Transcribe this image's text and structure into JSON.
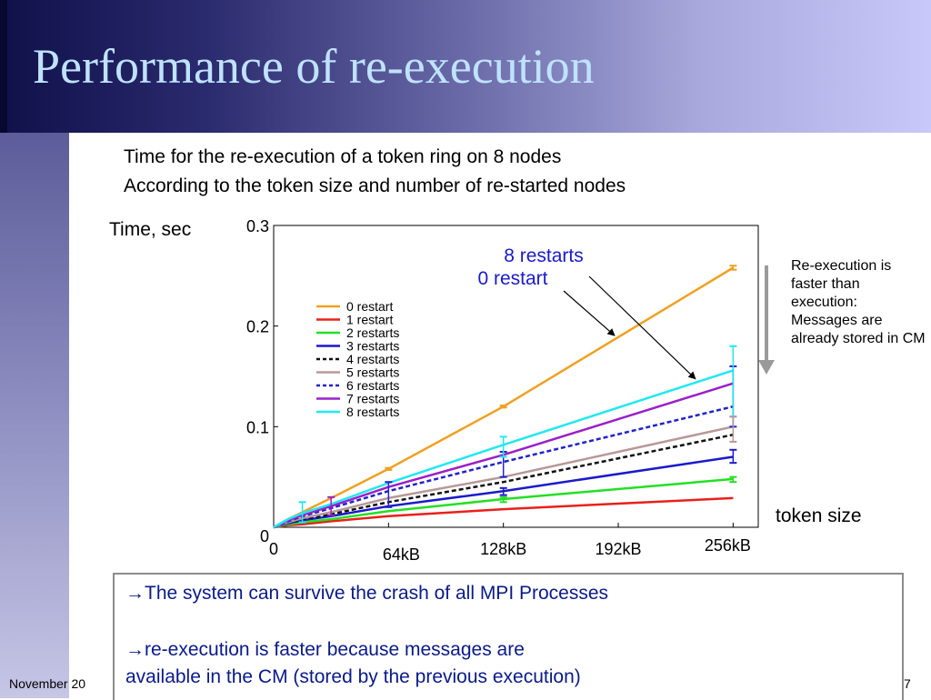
{
  "slide": {
    "title": "Performance of re-execution",
    "subtitle_1": "Time for the re-execution of a token ring on 8 nodes",
    "subtitle_2": "According to the token size and number of re-started nodes",
    "side_note": "Re-execution is faster than execution: Messages are already stored in CM",
    "bullets": {
      "arrow": "→",
      "b1": "The system can survive the crash of all MPI Processes",
      "b2_line1": "re-execution is faster because messages are",
      "b2_line2": "available in the CM (stored by the previous execution)"
    },
    "footer_date": "November 20",
    "page_number": "7"
  },
  "colors": {
    "title_text": "#bfe2ff",
    "bullet_text": "#0a1a8a",
    "annotation_text": "#1a1acc"
  },
  "chart_data": {
    "type": "line",
    "ylabel": "Time, sec",
    "xlabel": "token size",
    "ylim": [
      0,
      0.3
    ],
    "xlim": [
      0,
      270
    ],
    "x_tick_values": [
      0,
      64,
      128,
      192,
      256
    ],
    "x_tick_labels": [
      "0",
      "64kB",
      "128kB",
      "192kB",
      "256kB"
    ],
    "y_tick_values": [
      0,
      0.1,
      0.2,
      0.3
    ],
    "y_tick_labels": [
      "0",
      "0.1",
      "0.2",
      "0.3"
    ],
    "legend_position": "upper-left",
    "grid": false,
    "annotations": [
      {
        "text": "8 restarts",
        "target_series": "8 restarts",
        "target_x": 235
      },
      {
        "text": "0 restart",
        "target_series": "0 restart",
        "target_x": 190
      }
    ],
    "x": [
      0,
      8,
      16,
      32,
      64,
      128,
      256
    ],
    "series": [
      {
        "name": "0 restart",
        "color": "#f0a020",
        "dash": false,
        "values": [
          0.0,
          0.008,
          0.015,
          0.029,
          0.058,
          0.12,
          0.258
        ]
      },
      {
        "name": "1 restart",
        "color": "#e8201a",
        "dash": false,
        "values": [
          0.0,
          0.002,
          0.003,
          0.006,
          0.011,
          0.018,
          0.029
        ]
      },
      {
        "name": "2 restarts",
        "color": "#22e022",
        "dash": false,
        "values": [
          0.0,
          0.003,
          0.005,
          0.008,
          0.016,
          0.028,
          0.048
        ]
      },
      {
        "name": "3 restarts",
        "color": "#1a1acc",
        "dash": false,
        "values": [
          0.0,
          0.004,
          0.007,
          0.011,
          0.021,
          0.036,
          0.07
        ]
      },
      {
        "name": "4 restarts",
        "color": "#111111",
        "dash": true,
        "values": [
          0.0,
          0.005,
          0.008,
          0.013,
          0.025,
          0.045,
          0.092
        ]
      },
      {
        "name": "5 restarts",
        "color": "#b89898",
        "dash": false,
        "values": [
          0.0,
          0.005,
          0.009,
          0.015,
          0.029,
          0.05,
          0.1
        ]
      },
      {
        "name": "6 restarts",
        "color": "#2222cc",
        "dash": true,
        "values": [
          0.0,
          0.006,
          0.011,
          0.019,
          0.036,
          0.065,
          0.12
        ]
      },
      {
        "name": "7 restarts",
        "color": "#9a20c8",
        "dash": false,
        "values": [
          0.0,
          0.007,
          0.012,
          0.021,
          0.04,
          0.072,
          0.143
        ]
      },
      {
        "name": "8 restarts",
        "color": "#20e8f0",
        "dash": false,
        "values": [
          0.0,
          0.008,
          0.014,
          0.023,
          0.044,
          0.082,
          0.156
        ]
      }
    ],
    "error_bars": [
      {
        "series": "0 restart",
        "x": 64,
        "lo": 0.057,
        "hi": 0.059
      },
      {
        "series": "0 restart",
        "x": 128,
        "lo": 0.119,
        "hi": 0.121
      },
      {
        "series": "0 restart",
        "x": 256,
        "lo": 0.256,
        "hi": 0.26
      },
      {
        "series": "3 restarts",
        "x": 128,
        "lo": 0.032,
        "hi": 0.039
      },
      {
        "series": "3 restarts",
        "x": 256,
        "lo": 0.064,
        "hi": 0.077
      },
      {
        "series": "6 restarts",
        "x": 64,
        "lo": 0.02,
        "hi": 0.045
      },
      {
        "series": "6 restarts",
        "x": 128,
        "lo": 0.05,
        "hi": 0.075
      },
      {
        "series": "6 restarts",
        "x": 256,
        "lo": 0.1,
        "hi": 0.16
      },
      {
        "series": "8 restarts",
        "x": 128,
        "lo": 0.07,
        "hi": 0.09
      },
      {
        "series": "8 restarts",
        "x": 256,
        "lo": 0.11,
        "hi": 0.18
      },
      {
        "series": "5 restarts",
        "x": 256,
        "lo": 0.085,
        "hi": 0.11
      },
      {
        "series": "2 restarts",
        "x": 128,
        "lo": 0.025,
        "hi": 0.03
      },
      {
        "series": "2 restarts",
        "x": 256,
        "lo": 0.045,
        "hi": 0.05
      },
      {
        "series": "7 restarts",
        "x": 32,
        "lo": 0.012,
        "hi": 0.03
      },
      {
        "series": "8 restarts",
        "x": 16,
        "lo": 0.005,
        "hi": 0.025
      }
    ]
  }
}
